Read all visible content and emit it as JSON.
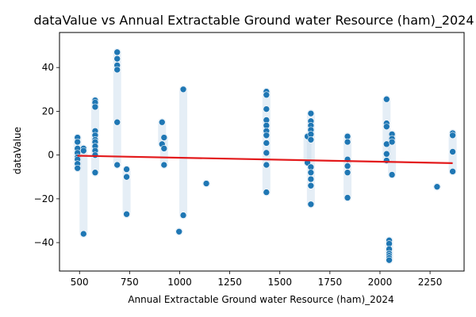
{
  "chart_data": {
    "type": "scatter",
    "title": "dataValue vs Annual Extractable Ground water Resource (ham)_2024",
    "xlabel": "Annual Extractable Ground water Resource (ham)_2024",
    "ylabel": "dataValue",
    "xlim": [
      400,
      2420
    ],
    "ylim": [
      -53,
      56
    ],
    "xticks": [
      500,
      750,
      1000,
      1250,
      1500,
      1750,
      2000,
      2250
    ],
    "yticks": [
      -40,
      -20,
      0,
      20,
      40
    ],
    "grid": false,
    "point_color": "#1f77b4",
    "trend_color": "#e31a1c",
    "halo_color": "#c6d9ec",
    "points": [
      {
        "x": 490,
        "y": 8
      },
      {
        "x": 490,
        "y": 6
      },
      {
        "x": 490,
        "y": 3
      },
      {
        "x": 490,
        "y": 1
      },
      {
        "x": 490,
        "y": -1
      },
      {
        "x": 490,
        "y": -2
      },
      {
        "x": 490,
        "y": -4
      },
      {
        "x": 490,
        "y": -6
      },
      {
        "x": 520,
        "y": 3
      },
      {
        "x": 520,
        "y": 2
      },
      {
        "x": 520,
        "y": -36
      },
      {
        "x": 578,
        "y": 25
      },
      {
        "x": 578,
        "y": 24
      },
      {
        "x": 578,
        "y": 22
      },
      {
        "x": 578,
        "y": 11
      },
      {
        "x": 578,
        "y": 9
      },
      {
        "x": 578,
        "y": 7
      },
      {
        "x": 578,
        "y": 6
      },
      {
        "x": 578,
        "y": 4
      },
      {
        "x": 578,
        "y": 2
      },
      {
        "x": 578,
        "y": 0
      },
      {
        "x": 578,
        "y": -8
      },
      {
        "x": 688,
        "y": 47
      },
      {
        "x": 688,
        "y": 44
      },
      {
        "x": 688,
        "y": 41
      },
      {
        "x": 688,
        "y": 39
      },
      {
        "x": 688,
        "y": 15
      },
      {
        "x": 688,
        "y": -4.5
      },
      {
        "x": 735,
        "y": -6.5
      },
      {
        "x": 735,
        "y": -10
      },
      {
        "x": 735,
        "y": -27
      },
      {
        "x": 912,
        "y": 15
      },
      {
        "x": 912,
        "y": 5
      },
      {
        "x": 922,
        "y": 8
      },
      {
        "x": 922,
        "y": 3
      },
      {
        "x": 922,
        "y": -4.5
      },
      {
        "x": 997,
        "y": -35
      },
      {
        "x": 1018,
        "y": 30
      },
      {
        "x": 1018,
        "y": -27.5
      },
      {
        "x": 1133,
        "y": -13
      },
      {
        "x": 1433,
        "y": 29
      },
      {
        "x": 1433,
        "y": 27.5
      },
      {
        "x": 1433,
        "y": 21
      },
      {
        "x": 1433,
        "y": 16
      },
      {
        "x": 1433,
        "y": 13.5
      },
      {
        "x": 1433,
        "y": 11
      },
      {
        "x": 1433,
        "y": 9
      },
      {
        "x": 1433,
        "y": 5.5
      },
      {
        "x": 1433,
        "y": 1
      },
      {
        "x": 1433,
        "y": -4.5
      },
      {
        "x": 1433,
        "y": -17
      },
      {
        "x": 1638,
        "y": 8.5
      },
      {
        "x": 1638,
        "y": -3.5
      },
      {
        "x": 1655,
        "y": 19
      },
      {
        "x": 1655,
        "y": 15.5
      },
      {
        "x": 1655,
        "y": 13.5
      },
      {
        "x": 1655,
        "y": 11.5
      },
      {
        "x": 1655,
        "y": 9.5
      },
      {
        "x": 1655,
        "y": 7
      },
      {
        "x": 1655,
        "y": -5.5
      },
      {
        "x": 1655,
        "y": -8
      },
      {
        "x": 1655,
        "y": -11
      },
      {
        "x": 1655,
        "y": -14
      },
      {
        "x": 1655,
        "y": -22.5
      },
      {
        "x": 1838,
        "y": 8.5
      },
      {
        "x": 1838,
        "y": 6
      },
      {
        "x": 1838,
        "y": -2
      },
      {
        "x": 1838,
        "y": -5
      },
      {
        "x": 1838,
        "y": -8
      },
      {
        "x": 1838,
        "y": -19.5
      },
      {
        "x": 2033,
        "y": 25.5
      },
      {
        "x": 2033,
        "y": 14.5
      },
      {
        "x": 2033,
        "y": 13
      },
      {
        "x": 2033,
        "y": 5
      },
      {
        "x": 2033,
        "y": 0.5
      },
      {
        "x": 2033,
        "y": -2.5
      },
      {
        "x": 2046,
        "y": -39
      },
      {
        "x": 2046,
        "y": -40.5
      },
      {
        "x": 2046,
        "y": -43
      },
      {
        "x": 2046,
        "y": -45
      },
      {
        "x": 2046,
        "y": -46
      },
      {
        "x": 2046,
        "y": -47
      },
      {
        "x": 2046,
        "y": -48
      },
      {
        "x": 2060,
        "y": 9.5
      },
      {
        "x": 2060,
        "y": 7.5
      },
      {
        "x": 2060,
        "y": 6
      },
      {
        "x": 2060,
        "y": -9
      },
      {
        "x": 2285,
        "y": -14.5
      },
      {
        "x": 2363,
        "y": 10
      },
      {
        "x": 2363,
        "y": 9
      },
      {
        "x": 2363,
        "y": 1.5
      },
      {
        "x": 2363,
        "y": -7.5
      }
    ],
    "trend_line": {
      "x": [
        490,
        2363
      ],
      "y": [
        -0.3,
        -3.7
      ]
    }
  }
}
